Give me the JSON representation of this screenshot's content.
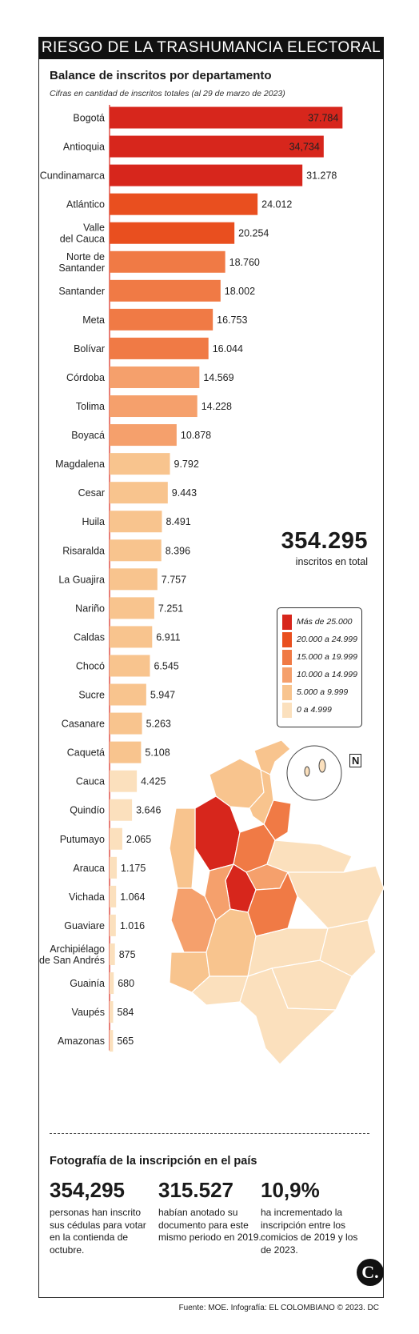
{
  "header": {
    "banner": "RIESGO DE LA TRASHUMANCIA ELECTORAL",
    "title": "Balance de inscritos por departamento",
    "subtitle": "Cifras en cantidad de inscritos totales (al 29 de marzo de 2023)"
  },
  "chart_data": {
    "type": "bar",
    "orientation": "horizontal",
    "categories": [
      "Bogotá",
      "Antioquia",
      "Cundinamarca",
      "Atlántico",
      "Valle del Cauca",
      "Norte de Santander",
      "Santander",
      "Meta",
      "Bolívar",
      "Córdoba",
      "Tolima",
      "Boyacá",
      "Magdalena",
      "Cesar",
      "Huila",
      "Risaralda",
      "La Guajira",
      "Nariño",
      "Caldas",
      "Chocó",
      "Sucre",
      "Casanare",
      "Caquetá",
      "Cauca",
      "Quindío",
      "Putumayo",
      "Arauca",
      "Vichada",
      "Guaviare",
      "Archipiélago de San Andrés",
      "Guainía",
      "Vaupés",
      "Amazonas"
    ],
    "category_lines": [
      [
        "Bogotá"
      ],
      [
        "Antioquia"
      ],
      [
        "Cundinamarca"
      ],
      [
        "Atlántico"
      ],
      [
        "Valle",
        "del Cauca"
      ],
      [
        "Norte de",
        "Santander"
      ],
      [
        "Santander"
      ],
      [
        "Meta"
      ],
      [
        "Bolívar"
      ],
      [
        "Córdoba"
      ],
      [
        "Tolima"
      ],
      [
        "Boyacá"
      ],
      [
        "Magdalena"
      ],
      [
        "Cesar"
      ],
      [
        "Huila"
      ],
      [
        "Risaralda"
      ],
      [
        "La Guajira"
      ],
      [
        "Nariño"
      ],
      [
        "Caldas"
      ],
      [
        "Chocó"
      ],
      [
        "Sucre"
      ],
      [
        "Casanare"
      ],
      [
        "Caquetá"
      ],
      [
        "Cauca"
      ],
      [
        "Quindío"
      ],
      [
        "Putumayo"
      ],
      [
        "Arauca"
      ],
      [
        "Vichada"
      ],
      [
        "Guaviare"
      ],
      [
        "Archipiélago",
        "de San Andrés"
      ],
      [
        "Guainía"
      ],
      [
        "Vaupés"
      ],
      [
        "Amazonas"
      ]
    ],
    "values": [
      37784,
      34734,
      31278,
      24012,
      20254,
      18760,
      18002,
      16753,
      16044,
      14569,
      14228,
      10878,
      9792,
      9443,
      8491,
      8396,
      7757,
      7251,
      6911,
      6545,
      5947,
      5263,
      5108,
      4425,
      3646,
      2065,
      1175,
      1064,
      1016,
      875,
      680,
      584,
      565
    ],
    "value_labels": [
      "37.784",
      "34,734",
      "31.278",
      "24.012",
      "20.254",
      "18.760",
      "18.002",
      "16.753",
      "16.044",
      "14.569",
      "14.228",
      "10.878",
      "9.792",
      "9.443",
      "8.491",
      "8.396",
      "7.757",
      "7.251",
      "6.911",
      "6.545",
      "5.947",
      "5.263",
      "5.108",
      "4.425",
      "3.646",
      "2.065",
      "1.175",
      "1.064",
      "1.016",
      "875",
      "680",
      "584",
      "565"
    ],
    "xlim": [
      0,
      38000
    ],
    "grid": false,
    "legend": {
      "position": "right",
      "entries": [
        {
          "label": "Más de 25.000",
          "color": "#d7261c"
        },
        {
          "label": "20.000 a 24.999",
          "color": "#e94f1f"
        },
        {
          "label": "15.000 a 19.999",
          "color": "#f07a45"
        },
        {
          "label": "10.000 a 14.999",
          "color": "#f5a06c"
        },
        {
          "label": "5.000 a 9.999",
          "color": "#f8c48e"
        },
        {
          "label": "0 a 4.999",
          "color": "#fbe0bd"
        }
      ]
    }
  },
  "total": {
    "value": "354.295",
    "caption": "inscritos en total"
  },
  "compass": "N",
  "section": {
    "title": "Fotografía de la inscripción en el país",
    "stats": [
      {
        "value": "354,295",
        "text": "personas han inscrito sus cédulas para votar en la contienda de octubre."
      },
      {
        "value": "315.527",
        "text": "habían anotado su documento para este mismo periodo en 2019."
      },
      {
        "value": "10,9%",
        "text": "ha incrementado la inscripción entre los comicios de 2019 y los de 2023."
      }
    ]
  },
  "source": "Fuente: MOE. Infografía: EL COLOMBIANO © 2023. DC",
  "logo": "C."
}
